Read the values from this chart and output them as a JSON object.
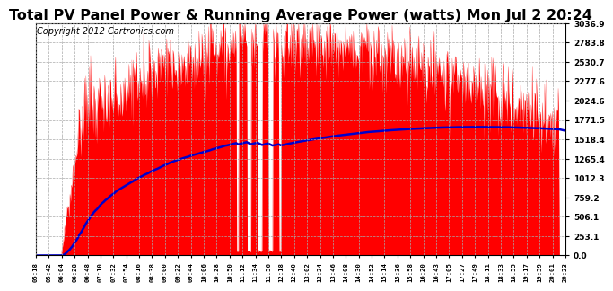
{
  "title": "Total PV Panel Power & Running Average Power (watts) Mon Jul 2 20:24",
  "copyright": "Copyright 2012 Cartronics.com",
  "yticks": [
    0.0,
    253.1,
    506.1,
    759.2,
    1012.3,
    1265.4,
    1518.4,
    1771.5,
    2024.6,
    2277.6,
    2530.7,
    2783.8,
    3036.9
  ],
  "ymax": 3036.9,
  "ymin": 0.0,
  "background_color": "#ffffff",
  "fill_color": "#ff0000",
  "avg_color": "#0000cc",
  "grid_color": "#aaaaaa",
  "title_fontsize": 11.5,
  "copyright_fontsize": 7,
  "time_labels": [
    "05:18",
    "05:42",
    "06:04",
    "06:28",
    "06:48",
    "07:10",
    "07:32",
    "07:54",
    "08:16",
    "08:38",
    "09:00",
    "09:22",
    "09:44",
    "10:06",
    "10:28",
    "10:50",
    "11:12",
    "11:34",
    "11:56",
    "12:18",
    "12:40",
    "13:02",
    "13:24",
    "13:46",
    "14:08",
    "14:30",
    "14:52",
    "15:14",
    "15:36",
    "15:58",
    "16:20",
    "16:43",
    "17:05",
    "17:27",
    "17:49",
    "18:11",
    "18:33",
    "18:55",
    "19:17",
    "19:39",
    "20:01",
    "20:23"
  ]
}
